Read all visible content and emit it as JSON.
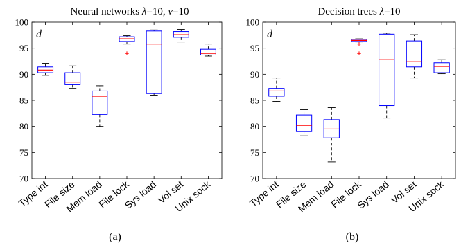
{
  "chart_data": [
    {
      "type": "box",
      "title_prefix": "Neural networks",
      "title_lambda_value": "10",
      "title_nu_value": "10",
      "panel_label": "d",
      "caption": "(a)",
      "ylim": [
        70,
        100
      ],
      "yticks": [
        70,
        75,
        80,
        85,
        90,
        95,
        100
      ],
      "categories": [
        "Type int",
        "File size",
        "Mem load",
        "File lock",
        "Sys load",
        "Vol set",
        "Unix sock"
      ],
      "boxes": [
        {
          "whisker_low": 89.8,
          "q1": 90.3,
          "median": 90.8,
          "q3": 91.4,
          "whisker_high": 92.1,
          "outliers": []
        },
        {
          "whisker_low": 87.3,
          "q1": 88.0,
          "median": 88.5,
          "q3": 90.3,
          "whisker_high": 91.6,
          "outliers": []
        },
        {
          "whisker_low": 80.0,
          "q1": 82.3,
          "median": 85.8,
          "q3": 86.8,
          "whisker_high": 87.8,
          "outliers": []
        },
        {
          "whisker_low": 95.8,
          "q1": 96.3,
          "median": 96.8,
          "q3": 97.2,
          "whisker_high": 97.4,
          "outliers": [
            94.0
          ]
        },
        {
          "whisker_low": 86.0,
          "q1": 86.3,
          "median": 95.8,
          "q3": 98.3,
          "whisker_high": 98.5,
          "outliers": []
        },
        {
          "whisker_low": 96.2,
          "q1": 97.1,
          "median": 97.6,
          "q3": 98.2,
          "whisker_high": 98.6,
          "outliers": []
        },
        {
          "whisker_low": 93.5,
          "q1": 93.7,
          "median": 94.0,
          "q3": 94.8,
          "whisker_high": 95.8,
          "outliers": []
        }
      ],
      "box_color": "#0000ff",
      "median_color": "#ff0000",
      "outlier_color": "#ff0000",
      "whisker_style": "dashed"
    },
    {
      "type": "box",
      "title_prefix": "Decision trees",
      "title_lambda_value": "10",
      "panel_label": "d",
      "caption": "(b)",
      "ylim": [
        70,
        100
      ],
      "yticks": [
        70,
        75,
        80,
        85,
        90,
        95,
        100
      ],
      "categories": [
        "Type int",
        "File size",
        "Mem load",
        "File lock",
        "Sys load",
        "Vol set",
        "Unix sock"
      ],
      "boxes": [
        {
          "whisker_low": 84.8,
          "q1": 85.8,
          "median": 86.8,
          "q3": 87.3,
          "whisker_high": 89.3,
          "outliers": []
        },
        {
          "whisker_low": 78.2,
          "q1": 79.0,
          "median": 80.2,
          "q3": 82.2,
          "whisker_high": 83.2,
          "outliers": []
        },
        {
          "whisker_low": 73.2,
          "q1": 77.8,
          "median": 79.5,
          "q3": 81.3,
          "whisker_high": 83.6,
          "outliers": []
        },
        {
          "whisker_low": 96.2,
          "q1": 96.3,
          "median": 96.5,
          "q3": 96.7,
          "whisker_high": 96.8,
          "outliers": [
            95.8,
            94.0
          ]
        },
        {
          "whisker_low": 81.6,
          "q1": 84.0,
          "median": 92.8,
          "q3": 97.7,
          "whisker_high": 97.9,
          "outliers": []
        },
        {
          "whisker_low": 89.3,
          "q1": 91.4,
          "median": 92.4,
          "q3": 96.4,
          "whisker_high": 97.6,
          "outliers": []
        },
        {
          "whisker_low": 90.1,
          "q1": 90.3,
          "median": 91.5,
          "q3": 92.2,
          "whisker_high": 92.8,
          "outliers": []
        }
      ],
      "box_color": "#0000ff",
      "median_color": "#ff0000",
      "outlier_color": "#ff0000",
      "whisker_style": "dashed"
    }
  ]
}
